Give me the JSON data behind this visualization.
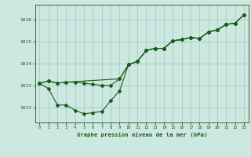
{
  "title": "Graphe pression niveau de la mer (hPa)",
  "bg_color": "#cce8e0",
  "line_color": "#1a5c1a",
  "grid_color": "#aacfc8",
  "xlim": [
    -0.5,
    23.5
  ],
  "ylim": [
    1011.3,
    1016.7
  ],
  "yticks": [
    1012,
    1013,
    1014,
    1015,
    1016
  ],
  "xticks": [
    0,
    1,
    2,
    3,
    4,
    5,
    6,
    7,
    8,
    9,
    10,
    11,
    12,
    13,
    14,
    15,
    16,
    17,
    18,
    19,
    20,
    21,
    22,
    23
  ],
  "series1_x": [
    0,
    1,
    2,
    3,
    9,
    10,
    11,
    12,
    13,
    14,
    15,
    16,
    17,
    18,
    19,
    20,
    21,
    22,
    23
  ],
  "series1_y": [
    1013.1,
    1013.2,
    1013.1,
    1013.15,
    1013.3,
    1013.95,
    1014.1,
    1014.6,
    1014.7,
    1014.7,
    1015.05,
    1015.1,
    1015.2,
    1015.15,
    1015.45,
    1015.55,
    1015.8,
    1015.85,
    1016.25
  ],
  "series2_x": [
    0,
    1,
    2,
    3,
    4,
    5,
    6,
    7,
    8,
    9,
    10,
    11,
    12,
    13,
    14,
    15,
    16,
    17,
    18,
    19,
    20,
    21,
    22,
    23
  ],
  "series2_y": [
    1013.1,
    1012.85,
    1012.1,
    1012.1,
    1011.85,
    1011.7,
    1011.75,
    1011.8,
    1012.3,
    1012.75,
    1013.95,
    1014.1,
    1014.6,
    1014.7,
    1014.7,
    1015.05,
    1015.1,
    1015.2,
    1015.15,
    1015.45,
    1015.55,
    1015.8,
    1015.85,
    1016.25
  ],
  "series3_x": [
    0,
    1,
    2,
    3,
    4,
    5,
    6,
    7,
    8,
    9,
    10,
    11,
    12,
    13,
    14,
    15,
    16,
    17,
    18,
    19,
    20,
    21,
    22,
    23
  ],
  "series3_y": [
    1013.1,
    1013.2,
    1013.1,
    1013.15,
    1013.15,
    1013.1,
    1013.05,
    1013.0,
    1013.0,
    1013.3,
    1013.95,
    1014.1,
    1014.6,
    1014.7,
    1014.7,
    1015.05,
    1015.1,
    1015.2,
    1015.15,
    1015.45,
    1015.55,
    1015.8,
    1015.85,
    1016.25
  ]
}
